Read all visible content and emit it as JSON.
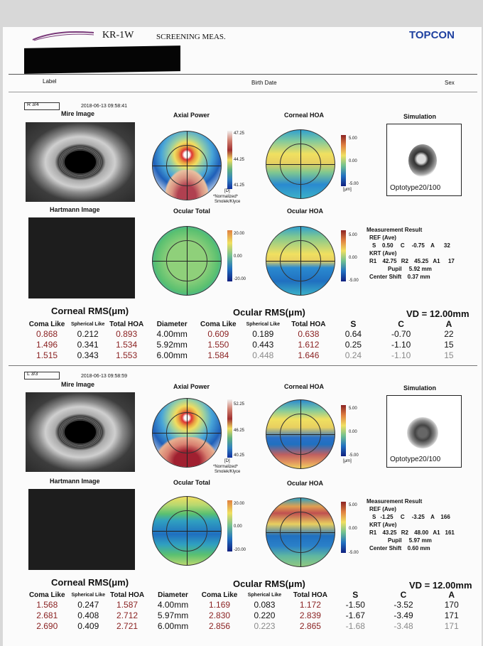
{
  "header": {
    "model": "KR-1W",
    "mode": "SCREENING MEAS.",
    "brand": "TOPCON",
    "label_caption": "Label",
    "birth_caption": "Birth Date",
    "sex_caption": "Sex"
  },
  "panels": [
    {
      "tag": "R 3/4",
      "timestamp": "2018-06-13 09:58:41",
      "titles": {
        "mire": "Mire Image",
        "axial": "Axial Power",
        "corneal_hoa": "Corneal HOA",
        "simulation": "Simulation",
        "hartmann": "Hartmann Image",
        "ocular_total": "Ocular Total",
        "ocular_hoa": "Ocular HOA"
      },
      "axial_scale": [
        "47.25",
        "44.25",
        "41.25"
      ],
      "axial_unit": "[D]",
      "axial_note1": "*Normalized*",
      "axial_note2": "Smolek/Klyce",
      "hoa_scale": [
        "5.00",
        "0.00",
        "-5.00"
      ],
      "ocular_total_scale": [
        "20.00",
        "0.00",
        "-20.00"
      ],
      "unit_um": "[μm]",
      "optotype": "Optotype20/100",
      "measurement": {
        "title": "Measurement Result",
        "ref_label": "REF (Ave)",
        "ref": {
          "S": "0.50",
          "C": "-0.75",
          "A": "32"
        },
        "krt_label": "KRT (Ave)",
        "krt": {
          "R1": "42.75",
          "R2": "45.25",
          "A1": "17"
        },
        "pupil_label": "Pupil",
        "pupil": "5.92 mm",
        "center_label": "Center Shift",
        "center": "0.37 mm"
      },
      "corneal_rms_title": "Corneal RMS(μm)",
      "ocular_rms_title": "Ocular RMS(μm)",
      "vd": "VD = 12.00mm",
      "columns": [
        "Coma Like",
        "Spherical Like",
        "Total HOA",
        "Diameter",
        "Coma Like",
        "Spherical Like",
        "Total HOA",
        "S",
        "C",
        "A"
      ],
      "rows": [
        [
          "0.868",
          "0.212",
          "0.893",
          "4.00mm",
          "0.609",
          "0.189",
          "0.638",
          "0.64",
          "-0.70",
          "22"
        ],
        [
          "1.496",
          "0.341",
          "1.534",
          "5.92mm",
          "1.550",
          "0.443",
          "1.612",
          "0.25",
          "-1.10",
          "15"
        ],
        [
          "1.515",
          "0.343",
          "1.553",
          "6.00mm",
          "1.584",
          "0.448",
          "1.646",
          "0.24",
          "-1.10",
          "15"
        ]
      ]
    },
    {
      "tag": "L 3/3",
      "timestamp": "2018-06-13 09:58:59",
      "titles": {
        "mire": "Mire Image",
        "axial": "Axial Power",
        "corneal_hoa": "Corneal HOA",
        "simulation": "Simulation",
        "hartmann": "Hartmann Image",
        "ocular_total": "Ocular Total",
        "ocular_hoa": "Ocular HOA"
      },
      "axial_scale": [
        "52.25",
        "46.25",
        "40.25"
      ],
      "axial_unit": "[D]",
      "axial_note1": "*Normalized*",
      "axial_note2": "Smolek/Klyce",
      "hoa_scale": [
        "5.00",
        "0.00",
        "-5.00"
      ],
      "ocular_total_scale": [
        "20.00",
        "0.00",
        "-20.00"
      ],
      "unit_um": "[μm]",
      "optotype": "Optotype20/100",
      "measurement": {
        "title": "Measurement Result",
        "ref_label": "REF (Ave)",
        "ref": {
          "S": "-1.25",
          "C": "-3.25",
          "A": "166"
        },
        "krt_label": "KRT (Ave)",
        "krt": {
          "R1": "43.25",
          "R2": "48.00",
          "A1": "161"
        },
        "pupil_label": "Pupil",
        "pupil": "5.97 mm",
        "center_label": "Center Shift",
        "center": "0.60 mm"
      },
      "corneal_rms_title": "Corneal RMS(μm)",
      "ocular_rms_title": "Ocular RMS(μm)",
      "vd": "VD = 12.00mm",
      "columns": [
        "Coma Like",
        "Spherical Like",
        "Total HOA",
        "Diameter",
        "Coma Like",
        "Spherical Like",
        "Total HOA",
        "S",
        "C",
        "A"
      ],
      "rows": [
        [
          "1.568",
          "0.247",
          "1.587",
          "4.00mm",
          "1.169",
          "0.083",
          "1.172",
          "-1.50",
          "-3.52",
          "170"
        ],
        [
          "2.681",
          "0.408",
          "2.712",
          "5.97mm",
          "2.830",
          "0.220",
          "2.839",
          "-1.67",
          "-3.49",
          "171"
        ],
        [
          "2.690",
          "0.409",
          "2.721",
          "6.00mm",
          "2.856",
          "0.223",
          "2.865",
          "-1.68",
          "-3.48",
          "171"
        ]
      ]
    }
  ],
  "axis_ticks": [
    "90",
    "120",
    "60",
    "150",
    "30",
    "180",
    "0",
    "210",
    "330",
    "240",
    "300",
    "270"
  ],
  "labels": {
    "S": "S",
    "C": "C",
    "A": "A",
    "R1": "R1",
    "R2": "R2",
    "A1": "A1"
  },
  "colors": {
    "accent_red": "#8b2323",
    "brand_blue": "#1e40a0"
  }
}
